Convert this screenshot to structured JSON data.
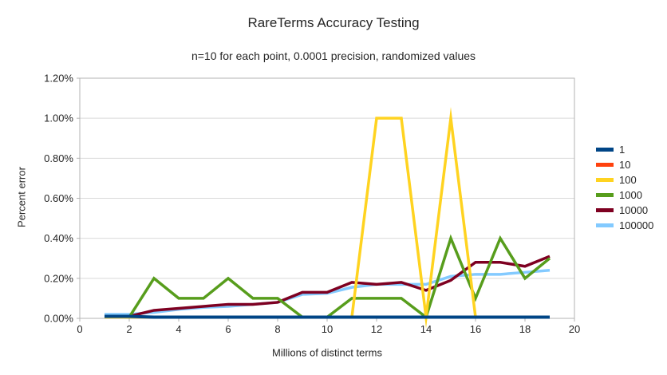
{
  "chart_data": {
    "type": "line",
    "title": "RareTerms Accuracy Testing",
    "subtitle": "n=10 for each point, 0.0001 precision, randomized values",
    "xlabel": "Millions of distinct terms",
    "ylabel": "Percent error",
    "xlim": [
      0,
      20
    ],
    "ylim": [
      0,
      1.2
    ],
    "grid": true,
    "legend_position": "right",
    "xticks": [
      0,
      2,
      4,
      6,
      8,
      10,
      12,
      14,
      16,
      18,
      20
    ],
    "yticks": [
      0,
      0.2,
      0.4,
      0.6,
      0.8,
      1.0,
      1.2
    ],
    "ytick_labels": [
      "0.00%",
      "0.20%",
      "0.40%",
      "0.60%",
      "0.80%",
      "1.00%",
      "1.20%"
    ],
    "x": [
      1,
      2,
      3,
      4,
      5,
      6,
      7,
      8,
      9,
      10,
      11,
      12,
      13,
      14,
      15,
      16,
      17,
      18,
      19
    ],
    "y_unit": "percent",
    "series": [
      {
        "name": "1",
        "color": "#004586",
        "values": [
          0.01,
          0.01,
          0,
          0,
          0,
          0,
          0,
          0,
          0,
          0,
          0,
          0,
          0,
          0,
          0,
          0,
          0,
          0,
          0
        ]
      },
      {
        "name": "10",
        "color": "#FF420E",
        "values": [
          0.01,
          0.01,
          0,
          0,
          0,
          0,
          0,
          0,
          0,
          0,
          0,
          0,
          0,
          0,
          0,
          0,
          0,
          0,
          0
        ]
      },
      {
        "name": "100",
        "color": "#FFD320",
        "values": [
          0,
          0,
          0,
          0,
          0,
          0,
          0,
          0,
          0,
          0,
          0,
          1.0,
          1.0,
          0,
          1.0,
          0,
          0,
          0,
          0
        ]
      },
      {
        "name": "1000",
        "color": "#579D1C",
        "values": [
          0.01,
          0,
          0.2,
          0.1,
          0.1,
          0.2,
          0.1,
          0.1,
          0,
          0,
          0.1,
          0.1,
          0.1,
          0,
          0.4,
          0.1,
          0.4,
          0.2,
          0.3
        ]
      },
      {
        "name": "10000",
        "color": "#7E0021",
        "values": [
          0.01,
          0.01,
          0.04,
          0.05,
          0.06,
          0.07,
          0.07,
          0.08,
          0.13,
          0.13,
          0.18,
          0.17,
          0.18,
          0.14,
          0.19,
          0.28,
          0.28,
          0.26,
          0.31
        ]
      },
      {
        "name": "100000",
        "color": "#83CAFF",
        "values": [
          0.02,
          0.02,
          0.03,
          0.045,
          0.055,
          0.06,
          0.07,
          0.08,
          0.12,
          0.125,
          0.155,
          0.17,
          0.17,
          0.17,
          0.21,
          0.22,
          0.22,
          0.23,
          0.24
        ]
      }
    ],
    "style": {
      "grid_color": "#d9d9d9",
      "axis_color": "#b3b3b3",
      "text_color": "#262626",
      "background": "#ffffff"
    }
  }
}
